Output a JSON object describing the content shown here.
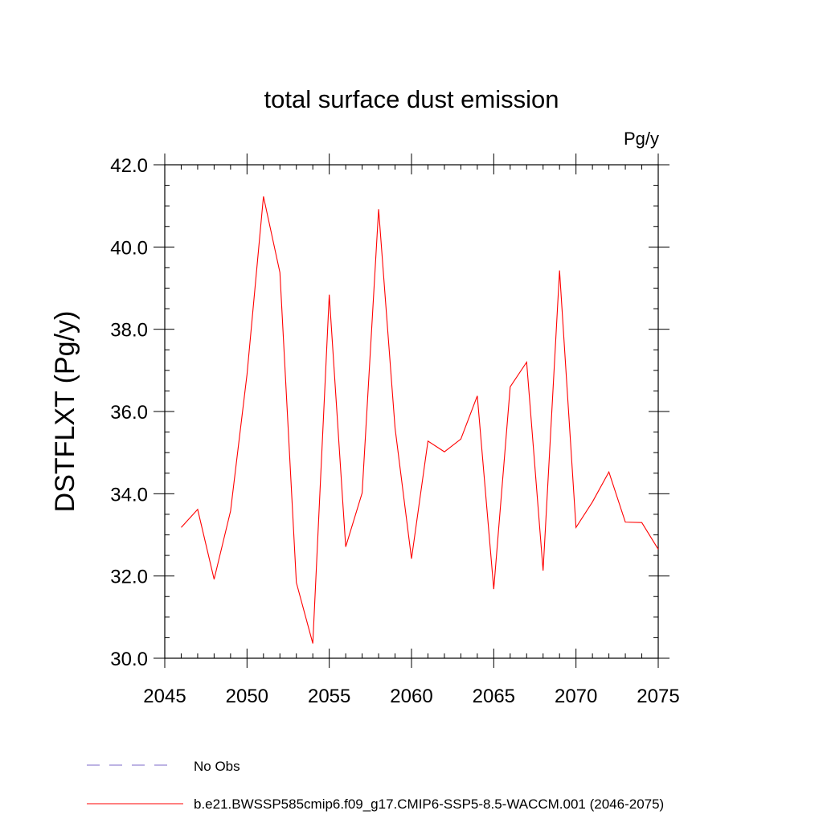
{
  "chart_data": {
    "type": "line",
    "title": "total surface dust emission",
    "units_label": "Pg/y",
    "ylabel": "DSTFLXT  (Pg/y)",
    "xlabel": "",
    "xlim": [
      2045,
      2075
    ],
    "ylim": [
      30,
      42
    ],
    "x_ticks": [
      2045,
      2050,
      2055,
      2060,
      2065,
      2070,
      2075
    ],
    "x_tick_labels": [
      "2045",
      "2050",
      "2055",
      "2060",
      "2065",
      "2070",
      "2075"
    ],
    "y_ticks": [
      30,
      32,
      34,
      36,
      38,
      40,
      42
    ],
    "y_tick_labels": [
      "30.0",
      "32.0",
      "34.0",
      "36.0",
      "38.0",
      "40.0",
      "42.0"
    ],
    "grid": false,
    "series": [
      {
        "name": "b.e21.BWSSP585cmip6.f09_g17.CMIP6-SSP5-8.5-WACCM.001 (2046-2075)",
        "color": "#ff0000",
        "style": "solid",
        "x": [
          2046,
          2047,
          2048,
          2049,
          2050,
          2051,
          2052,
          2053,
          2054,
          2055,
          2056,
          2057,
          2058,
          2059,
          2060,
          2061,
          2062,
          2063,
          2064,
          2065,
          2066,
          2067,
          2068,
          2069,
          2070,
          2071,
          2072,
          2073,
          2074,
          2075
        ],
        "values": [
          33.18,
          33.62,
          31.92,
          33.58,
          36.9,
          41.23,
          39.38,
          31.84,
          30.36,
          38.84,
          32.71,
          34.02,
          40.92,
          35.6,
          32.42,
          35.28,
          35.02,
          35.33,
          36.38,
          31.68,
          36.6,
          37.2,
          32.13,
          39.43,
          33.18,
          33.8,
          34.53,
          33.31,
          33.3,
          32.65
        ]
      }
    ],
    "legend": [
      {
        "label": "No Obs",
        "color": "#7b68c8",
        "style": "dashed"
      },
      {
        "label": "b.e21.BWSSP585cmip6.f09_g17.CMIP6-SSP5-8.5-WACCM.001 (2046-2075)",
        "color": "#ff0000",
        "style": "solid"
      }
    ]
  }
}
